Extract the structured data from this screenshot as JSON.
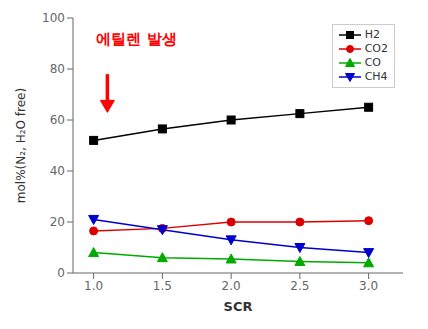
{
  "chart_data": {
    "type": "line",
    "x": [
      1.0,
      1.5,
      2.0,
      2.5,
      3.0
    ],
    "xlabel": "SCR",
    "ylabel": "mol%(N₂, H₂O free)",
    "xlim": [
      0.85,
      3.25
    ],
    "ylim": [
      0,
      100
    ],
    "xticks": [
      {
        "value": 1.0,
        "label": "1.0"
      },
      {
        "value": 1.5,
        "label": "1.5"
      },
      {
        "value": 2.0,
        "label": "2.0"
      },
      {
        "value": 2.5,
        "label": "2.5"
      },
      {
        "value": 3.0,
        "label": "3.0"
      }
    ],
    "yticks": [
      0,
      20,
      40,
      60,
      80,
      100
    ],
    "grid": false,
    "legend": "upper right",
    "series": [
      {
        "name": "H2",
        "color": "#000000",
        "marker": "square",
        "line_style": "solid",
        "values": [
          52,
          56.5,
          60,
          62.5,
          65
        ]
      },
      {
        "name": "CO2",
        "color": "#dd0000",
        "marker": "circle",
        "line_style": "solid",
        "values": [
          16.5,
          17.5,
          20,
          20,
          20.5
        ]
      },
      {
        "name": "CO",
        "color": "#00aa00",
        "marker": "triangle-up",
        "line_style": "solid",
        "values": [
          8,
          6,
          5.5,
          4.5,
          4
        ]
      },
      {
        "name": "CH4",
        "color": "#0000cc",
        "marker": "triangle-down",
        "line_style": "solid",
        "values": [
          21,
          17,
          13,
          10,
          8
        ]
      }
    ],
    "annotations": [
      {
        "text": "에틸렌 발생",
        "x": 1.02,
        "y": 90,
        "color": "red",
        "arrow": {
          "x": 1.1,
          "from_y": 78,
          "to_y": 63
        }
      }
    ]
  }
}
